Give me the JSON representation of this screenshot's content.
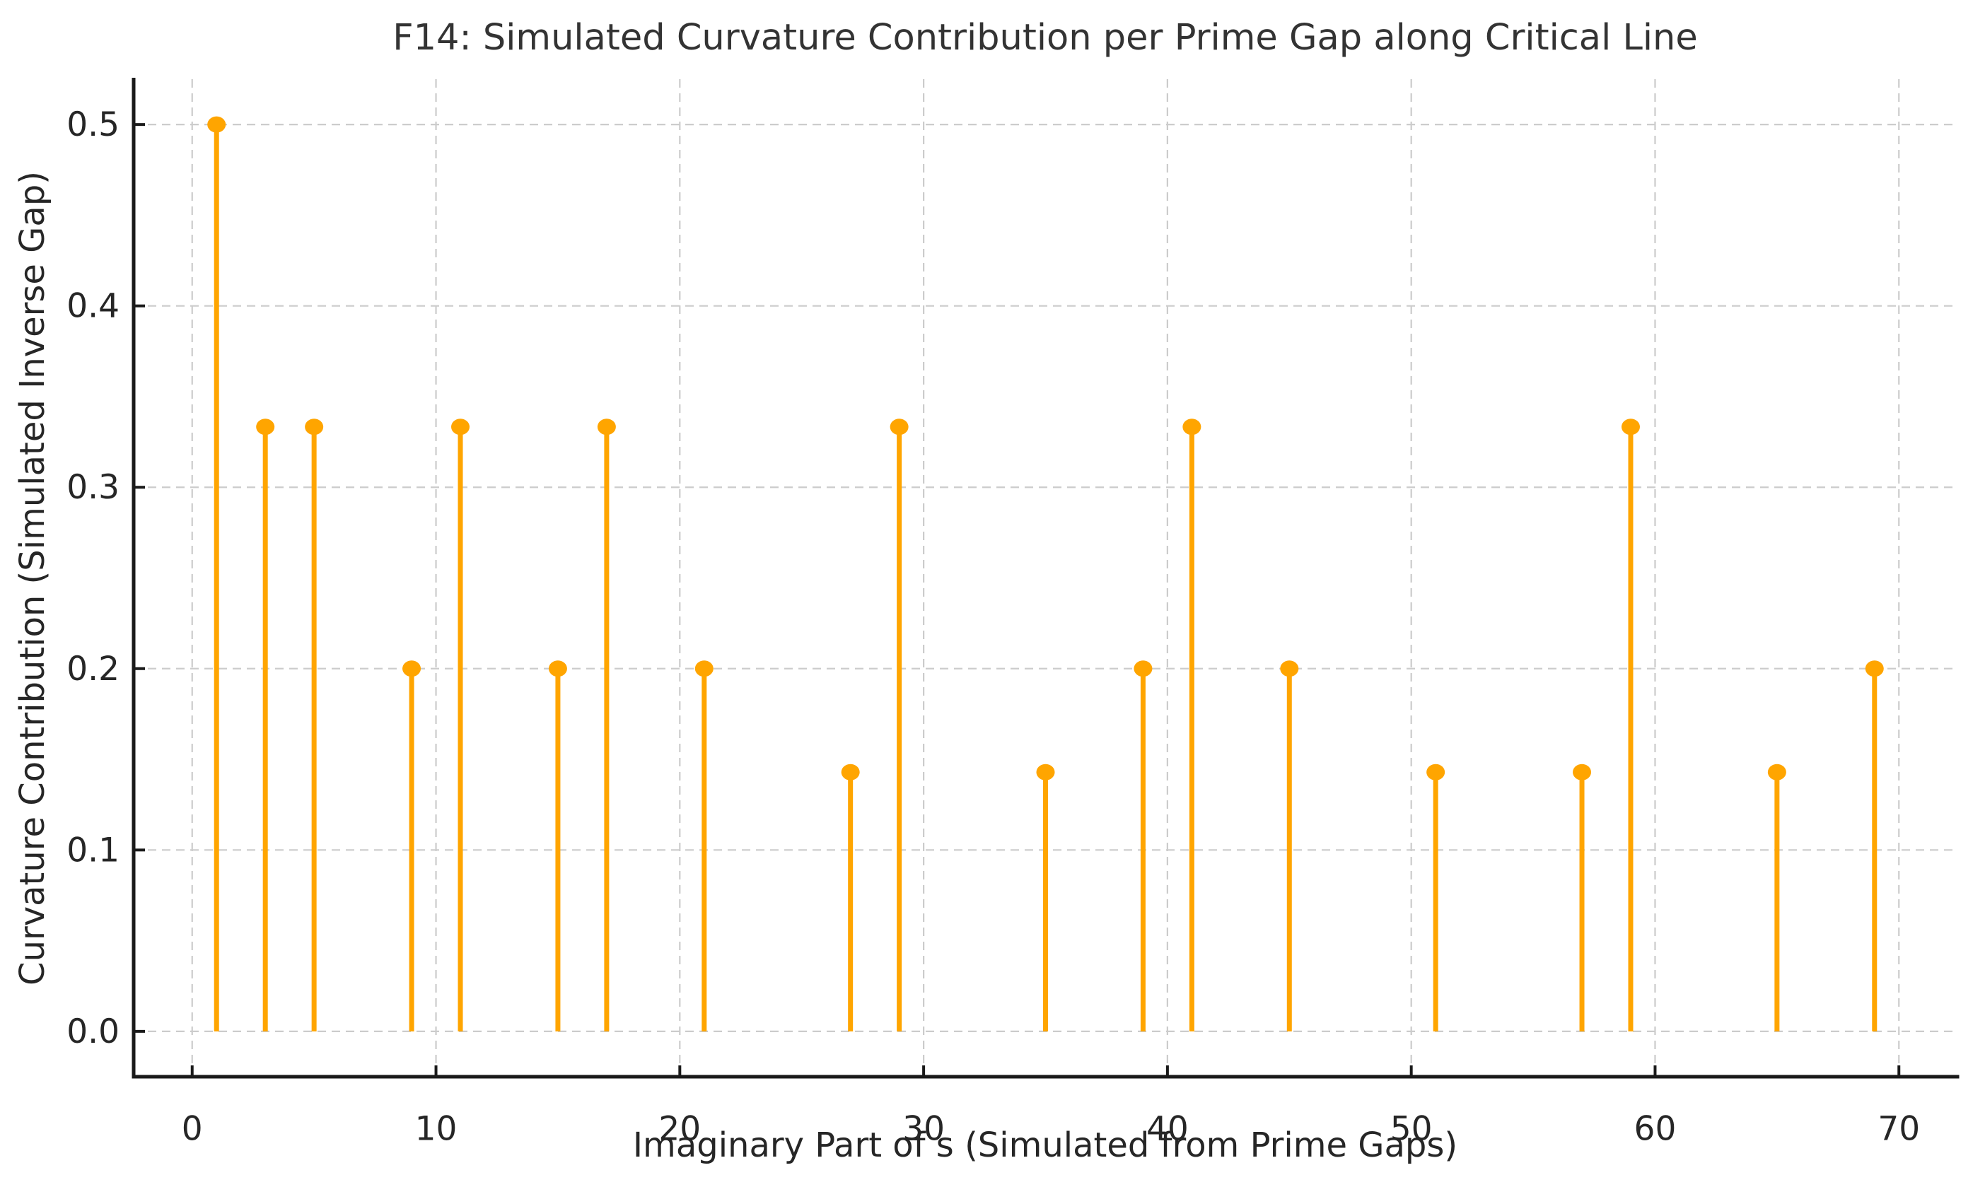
{
  "chart_data": {
    "type": "stem",
    "title": "F14: Simulated Curvature Contribution per Prime Gap along Critical Line",
    "xlabel": "Imaginary Part of s (Simulated from Prime Gaps)",
    "ylabel": "Curvature Contribution (Simulated Inverse Gap)",
    "x": [
      1,
      3,
      5,
      9,
      11,
      15,
      17,
      21,
      27,
      29,
      35,
      39,
      41,
      45,
      51,
      57,
      59,
      65,
      69
    ],
    "y": [
      0.5,
      0.3333,
      0.3333,
      0.2,
      0.3333,
      0.2,
      0.3333,
      0.2,
      0.1429,
      0.3333,
      0.1429,
      0.2,
      0.3333,
      0.2,
      0.1429,
      0.1429,
      0.3333,
      0.1429,
      0.2
    ],
    "xlim": [
      -2.4,
      72.4
    ],
    "ylim": [
      -0.025,
      0.525
    ],
    "xticks": {
      "values": [
        0,
        10,
        20,
        30,
        40,
        50,
        60,
        70
      ],
      "labels": [
        "0",
        "10",
        "20",
        "30",
        "40",
        "50",
        "60",
        "70"
      ]
    },
    "yticks": {
      "values": [
        0.0,
        0.1,
        0.2,
        0.3,
        0.4,
        0.5
      ],
      "labels": [
        "0.0",
        "0.1",
        "0.2",
        "0.3",
        "0.4",
        "0.5"
      ]
    },
    "grid": {
      "style": "dashed",
      "shown": true
    },
    "marker": "circle",
    "tick_direction": "in",
    "colors": {
      "stem": "#FFA500",
      "marker": "#FFA500",
      "grid": "#cccccc",
      "spine": "#1a1a1a",
      "tick_text": "#262626",
      "title_text": "#333333",
      "background": "#ffffff"
    }
  }
}
